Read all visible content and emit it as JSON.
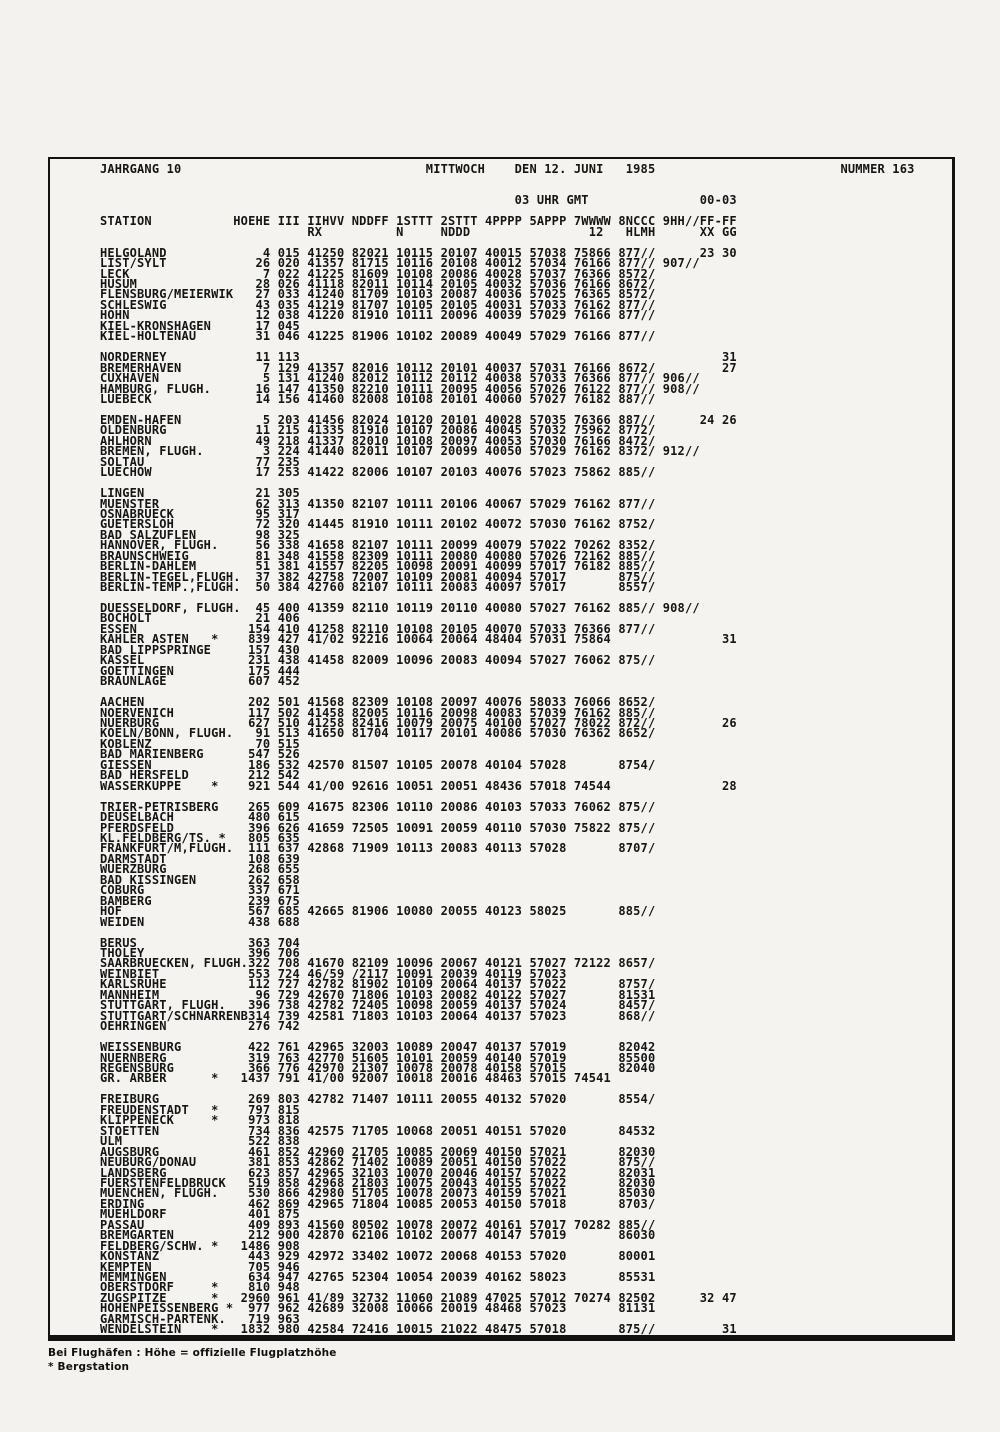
{
  "header": {
    "jahrgang": "JAHRGANG 10",
    "weekday": "MITTWOCH",
    "date": "DEN 12. JUNI",
    "year": "1985",
    "nummer": "NUMMER 163",
    "time": "03 UHR GMT",
    "period": "00-03"
  },
  "columns": {
    "line1": [
      [
        "STATION",
        0
      ],
      [
        "HOEHE",
        18
      ],
      [
        "III",
        24
      ],
      [
        "IIHVV",
        28
      ],
      [
        "NDDFF",
        34
      ],
      [
        "1STTT",
        40
      ],
      [
        "2STTT",
        46
      ],
      [
        "4PPPP",
        52
      ],
      [
        "5APPP",
        58
      ],
      [
        "7WWWW",
        64
      ],
      [
        "8NCCC",
        70
      ],
      [
        "9HH//",
        76
      ],
      [
        "FF-FF",
        81
      ]
    ],
    "line2": [
      [
        "RX",
        28
      ],
      [
        "N",
        40
      ],
      [
        "NDDD",
        46
      ],
      [
        "12",
        66
      ],
      [
        "HLMH",
        71
      ],
      [
        "XX GG",
        81
      ]
    ]
  },
  "row_fields": [
    "station",
    "marker",
    "hoehe",
    "iii",
    "iihvv",
    "nddff",
    "1sttt",
    "2sttt",
    "4pppp",
    "5appp",
    "7wwww",
    "8nccc",
    "9hh",
    "ff"
  ],
  "groups": [
    [
      [
        "HELGOLAND",
        "",
        "4",
        "015",
        "41250",
        "82021",
        "10115",
        "20107",
        "40015",
        "57038",
        "75866",
        "877//",
        "",
        "23 30"
      ],
      [
        "LIST/SYLT",
        "",
        "26",
        "020",
        "41357",
        "81715",
        "10116",
        "20108",
        "40012",
        "57034",
        "76166",
        "877//",
        "907//",
        ""
      ],
      [
        "LECK",
        "",
        "7",
        "022",
        "41225",
        "81609",
        "10108",
        "20086",
        "40028",
        "57037",
        "76366",
        "8572/",
        "",
        ""
      ],
      [
        "HUSUM",
        "",
        "28",
        "026",
        "41118",
        "82011",
        "10114",
        "20105",
        "40032",
        "57036",
        "76166",
        "8672/",
        "",
        ""
      ],
      [
        "FLENSBURG/MEIERWIK",
        "",
        "27",
        "033",
        "41240",
        "81709",
        "10103",
        "20087",
        "40036",
        "57025",
        "76365",
        "8572/",
        "",
        ""
      ],
      [
        "SCHLESWIG",
        "",
        "43",
        "035",
        "41219",
        "81707",
        "10105",
        "20105",
        "40031",
        "57033",
        "76162",
        "877//",
        "",
        ""
      ],
      [
        "HOHN",
        "",
        "12",
        "038",
        "41220",
        "81910",
        "10111",
        "20096",
        "40039",
        "57029",
        "76166",
        "877//",
        "",
        ""
      ],
      [
        "KIEL-KRONSHAGEN",
        "",
        "17",
        "045"
      ],
      [
        "KIEL-HOLTENAU",
        "",
        "31",
        "046",
        "41225",
        "81906",
        "10102",
        "20089",
        "40049",
        "57029",
        "76166",
        "877//",
        "",
        ""
      ]
    ],
    [
      [
        "NORDERNEY",
        "",
        "11",
        "113",
        "",
        "",
        "",
        "",
        "",
        "",
        "",
        "",
        "",
        "31"
      ],
      [
        "BREMERHAVEN",
        "",
        "7",
        "129",
        "41357",
        "82016",
        "10112",
        "20101",
        "40037",
        "57031",
        "76166",
        "8672/",
        "",
        "27"
      ],
      [
        "CUXHAVEN",
        "",
        "5",
        "131",
        "41240",
        "82012",
        "10112",
        "20112",
        "40038",
        "57033",
        "76366",
        "877//",
        "906//",
        ""
      ],
      [
        "HAMBURG, FLUGH.",
        "",
        "16",
        "147",
        "41350",
        "82210",
        "10111",
        "20095",
        "40056",
        "57026",
        "76122",
        "877//",
        "908//",
        ""
      ],
      [
        "LUEBECK",
        "",
        "14",
        "156",
        "41460",
        "82008",
        "10108",
        "20101",
        "40060",
        "57027",
        "76182",
        "887//",
        "",
        ""
      ]
    ],
    [
      [
        "EMDEN-HAFEN",
        "",
        "5",
        "203",
        "41456",
        "82024",
        "10120",
        "20101",
        "40028",
        "57035",
        "76366",
        "887//",
        "",
        "24 26"
      ],
      [
        "OLDENBURG",
        "",
        "11",
        "215",
        "41335",
        "81910",
        "10107",
        "20086",
        "40045",
        "57032",
        "75962",
        "8772/",
        "",
        ""
      ],
      [
        "AHLHORN",
        "",
        "49",
        "218",
        "41337",
        "82010",
        "10108",
        "20097",
        "40053",
        "57030",
        "76166",
        "8472/",
        "",
        ""
      ],
      [
        "BREMEN, FLUGH.",
        "",
        "3",
        "224",
        "41440",
        "82011",
        "10107",
        "20099",
        "40050",
        "57029",
        "76162",
        "8372/",
        "912//",
        ""
      ],
      [
        "SOLTAU",
        "",
        "77",
        "235"
      ],
      [
        "LUECHOW",
        "",
        "17",
        "253",
        "41422",
        "82006",
        "10107",
        "20103",
        "40076",
        "57023",
        "75862",
        "885//",
        "",
        ""
      ]
    ],
    [
      [
        "LINGEN",
        "",
        "21",
        "305"
      ],
      [
        "MUENSTER",
        "",
        "62",
        "313",
        "41350",
        "82107",
        "10111",
        "20106",
        "40067",
        "57029",
        "76162",
        "877//",
        "",
        ""
      ],
      [
        "OSNABRUECK",
        "",
        "95",
        "317"
      ],
      [
        "GUETERSLOH",
        "",
        "72",
        "320",
        "41445",
        "81910",
        "10111",
        "20102",
        "40072",
        "57030",
        "76162",
        "8752/",
        "",
        ""
      ],
      [
        "BAD SALZUFLEN",
        "",
        "98",
        "325"
      ],
      [
        "HANNOVER, FLUGH.",
        "",
        "56",
        "338",
        "41658",
        "82107",
        "10111",
        "20099",
        "40079",
        "57022",
        "70262",
        "8352/",
        "",
        ""
      ],
      [
        "BRAUNSCHWEIG",
        "",
        "81",
        "348",
        "41558",
        "82309",
        "10111",
        "20080",
        "40080",
        "57026",
        "72162",
        "885//",
        "",
        ""
      ],
      [
        "BERLIN-DAHLEM",
        "",
        "51",
        "381",
        "41557",
        "82205",
        "10098",
        "20091",
        "40099",
        "57017",
        "76182",
        "885//",
        "",
        ""
      ],
      [
        "BERLIN-TEGEL,FLUGH.",
        "",
        "37",
        "382",
        "42758",
        "72007",
        "10109",
        "20081",
        "40094",
        "57017",
        "",
        "875//",
        "",
        ""
      ],
      [
        "BERLIN-TEMP.,FLUGH.",
        "",
        "50",
        "384",
        "42760",
        "82107",
        "10111",
        "20083",
        "40097",
        "57017",
        "",
        "8557/",
        "",
        ""
      ]
    ],
    [
      [
        "DUESSELDORF, FLUGH.",
        "",
        "45",
        "400",
        "41359",
        "82110",
        "10119",
        "20110",
        "40080",
        "57027",
        "76162",
        "885//",
        "908//",
        ""
      ],
      [
        "BOCHOLT",
        "",
        "21",
        "406"
      ],
      [
        "ESSEN",
        "",
        "154",
        "410",
        "41258",
        "82110",
        "10108",
        "20105",
        "40070",
        "57033",
        "76366",
        "877//",
        "",
        ""
      ],
      [
        "KAHLER ASTEN",
        "*",
        "839",
        "427",
        "41/02",
        "92216",
        "10064",
        "20064",
        "48404",
        "57031",
        "75864",
        "",
        "",
        "31"
      ],
      [
        "BAD LIPPSPRINGE",
        "",
        "157",
        "430"
      ],
      [
        "KASSEL",
        "",
        "231",
        "438",
        "41458",
        "82009",
        "10096",
        "20083",
        "40094",
        "57027",
        "76062",
        "875//",
        "",
        ""
      ],
      [
        "GOETTINGEN",
        "",
        "175",
        "444"
      ],
      [
        "BRAUNLAGE",
        "",
        "607",
        "452"
      ]
    ],
    [
      [
        "AACHEN",
        "",
        "202",
        "501",
        "41568",
        "82309",
        "10108",
        "20097",
        "40076",
        "58033",
        "76066",
        "8652/",
        "",
        ""
      ],
      [
        "NOERVENICH",
        "",
        "117",
        "502",
        "41458",
        "82005",
        "10116",
        "20098",
        "40083",
        "57039",
        "76162",
        "885//",
        "",
        ""
      ],
      [
        "NUERBURG",
        "",
        "627",
        "510",
        "41258",
        "82416",
        "10079",
        "20075",
        "40100",
        "57027",
        "78022",
        "872//",
        "",
        "26"
      ],
      [
        "KOELN/BONN, FLUGH.",
        "",
        "91",
        "513",
        "41650",
        "81704",
        "10117",
        "20101",
        "40086",
        "57030",
        "76362",
        "8652/",
        "",
        ""
      ],
      [
        "KOBLENZ",
        "",
        "70",
        "515"
      ],
      [
        "BAD MARIENBERG",
        "",
        "547",
        "526"
      ],
      [
        "GIESSEN",
        "",
        "186",
        "532",
        "42570",
        "81507",
        "10105",
        "20078",
        "40104",
        "57028",
        "",
        "8754/",
        "",
        ""
      ],
      [
        "BAD HERSFELD",
        "",
        "212",
        "542"
      ],
      [
        "WASSERKUPPE",
        "*",
        "921",
        "544",
        "41/00",
        "92616",
        "10051",
        "20051",
        "48436",
        "57018",
        "74544",
        "",
        "",
        "28"
      ]
    ],
    [
      [
        "TRIER-PETRISBERG",
        "",
        "265",
        "609",
        "41675",
        "82306",
        "10110",
        "20086",
        "40103",
        "57033",
        "76062",
        "875//",
        "",
        ""
      ],
      [
        "DEUSELBACH",
        "",
        "480",
        "615"
      ],
      [
        "PFERDSFELD",
        "",
        "396",
        "626",
        "41659",
        "72505",
        "10091",
        "20059",
        "40110",
        "57030",
        "75822",
        "875//",
        "",
        ""
      ],
      [
        "KL.FELDBERG/TS.",
        "*",
        "805",
        "635"
      ],
      [
        "FRANKFURT/M,FLUGH.",
        "",
        "111",
        "637",
        "42868",
        "71909",
        "10113",
        "20083",
        "40113",
        "57028",
        "",
        "8707/",
        "",
        ""
      ],
      [
        "DARMSTADT",
        "",
        "108",
        "639"
      ],
      [
        "WUERZBURG",
        "",
        "268",
        "655"
      ],
      [
        "BAD KISSINGEN",
        "",
        "262",
        "658"
      ],
      [
        "COBURG",
        "",
        "337",
        "671"
      ],
      [
        "BAMBERG",
        "",
        "239",
        "675"
      ],
      [
        "HOF",
        "",
        "567",
        "685",
        "42665",
        "81906",
        "10080",
        "20055",
        "40123",
        "58025",
        "",
        "885//",
        "",
        ""
      ],
      [
        "WEIDEN",
        "",
        "438",
        "688"
      ]
    ],
    [
      [
        "BERUS",
        "",
        "363",
        "704"
      ],
      [
        "THOLEY",
        "",
        "396",
        "706"
      ],
      [
        "SAARBRUECKEN, FLUGH.",
        "",
        "322",
        "708",
        "41670",
        "82109",
        "10096",
        "20067",
        "40121",
        "57027",
        "72122",
        "8657/",
        "",
        ""
      ],
      [
        "WEINBIET",
        "",
        "553",
        "724",
        "46/59",
        "/2117",
        "10091",
        "20039",
        "40119",
        "57023",
        "",
        "",
        "",
        ""
      ],
      [
        "KARLSRUHE",
        "",
        "112",
        "727",
        "42782",
        "81902",
        "10109",
        "20064",
        "40137",
        "57022",
        "",
        "8757/",
        "",
        ""
      ],
      [
        "MANNHEIM",
        "",
        "96",
        "729",
        "42670",
        "71806",
        "10103",
        "20082",
        "40122",
        "57027",
        "",
        "81531",
        "",
        ""
      ],
      [
        "STUTTGART, FLUGH.",
        "",
        "396",
        "738",
        "42782",
        "72405",
        "10098",
        "20059",
        "40137",
        "57024",
        "",
        "8457/",
        "",
        ""
      ],
      [
        "STUTTGART/SCHNARRENB",
        "",
        "314",
        "739",
        "42581",
        "71803",
        "10103",
        "20064",
        "40137",
        "57023",
        "",
        "868//",
        "",
        ""
      ],
      [
        "OEHRINGEN",
        "",
        "276",
        "742"
      ]
    ],
    [
      [
        "WEISSENBURG",
        "",
        "422",
        "761",
        "42965",
        "32003",
        "10089",
        "20047",
        "40137",
        "57019",
        "",
        "82042",
        "",
        ""
      ],
      [
        "NUERNBERG",
        "",
        "319",
        "763",
        "42770",
        "51605",
        "10101",
        "20059",
        "40140",
        "57019",
        "",
        "85500",
        "",
        ""
      ],
      [
        "REGENSBURG",
        "",
        "366",
        "776",
        "42970",
        "21307",
        "10078",
        "20078",
        "40158",
        "57015",
        "",
        "82040",
        "",
        ""
      ],
      [
        "GR. ARBER",
        "*",
        "1437",
        "791",
        "41/00",
        "92007",
        "10018",
        "20016",
        "48463",
        "57015",
        "74541",
        "",
        "",
        ""
      ]
    ],
    [
      [
        "FREIBURG",
        "",
        "269",
        "803",
        "42782",
        "71407",
        "10111",
        "20055",
        "40132",
        "57020",
        "",
        "8554/",
        "",
        ""
      ],
      [
        "FREUDENSTADT",
        "*",
        "797",
        "815"
      ],
      [
        "KLIPPENECK",
        "*",
        "973",
        "818"
      ],
      [
        "STOETTEN",
        "",
        "734",
        "836",
        "42575",
        "71705",
        "10068",
        "20051",
        "40151",
        "57020",
        "",
        "84532",
        "",
        ""
      ],
      [
        "ULM",
        "",
        "522",
        "838"
      ],
      [
        "AUGSBURG",
        "",
        "461",
        "852",
        "42960",
        "21705",
        "10085",
        "20069",
        "40150",
        "57021",
        "",
        "82030",
        "",
        ""
      ],
      [
        "NEUBURG/DONAU",
        "",
        "381",
        "853",
        "42862",
        "71402",
        "10089",
        "20051",
        "40150",
        "57022",
        "",
        "875//",
        "",
        ""
      ],
      [
        "LANDSBERG",
        "",
        "623",
        "857",
        "42965",
        "32103",
        "10070",
        "20046",
        "40157",
        "57022",
        "",
        "82031",
        "",
        ""
      ],
      [
        "FUERSTENFELDBRUCK",
        "",
        "519",
        "858",
        "42968",
        "21803",
        "10075",
        "20043",
        "40155",
        "57022",
        "",
        "82030",
        "",
        ""
      ],
      [
        "MUENCHEN, FLUGH.",
        "",
        "530",
        "866",
        "42980",
        "51705",
        "10078",
        "20073",
        "40159",
        "57021",
        "",
        "85030",
        "",
        ""
      ],
      [
        "ERDING",
        "",
        "462",
        "869",
        "42965",
        "71804",
        "10085",
        "20053",
        "40150",
        "57018",
        "",
        "8703/",
        "",
        ""
      ],
      [
        "MUEHLDORF",
        "",
        "401",
        "875"
      ],
      [
        "PASSAU",
        "",
        "409",
        "893",
        "41560",
        "80502",
        "10078",
        "20072",
        "40161",
        "57017",
        "70282",
        "885//",
        "",
        ""
      ],
      [
        "BREMGARTEN",
        "",
        "212",
        "900",
        "42870",
        "62106",
        "10102",
        "20077",
        "40147",
        "57019",
        "",
        "86030",
        "",
        ""
      ],
      [
        "FELDBERG/SCHW.",
        "*",
        "1486",
        "908"
      ],
      [
        "KONSTANZ",
        "",
        "443",
        "929",
        "42972",
        "33402",
        "10072",
        "20068",
        "40153",
        "57020",
        "",
        "80001",
        "",
        ""
      ],
      [
        "KEMPTEN",
        "",
        "705",
        "946"
      ],
      [
        "MEMMINGEN",
        "",
        "634",
        "947",
        "42765",
        "52304",
        "10054",
        "20039",
        "40162",
        "58023",
        "",
        "85531",
        "",
        ""
      ],
      [
        "OBERSTDORF",
        "*",
        "810",
        "948"
      ],
      [
        "ZUGSPITZE",
        "*",
        "2960",
        "961",
        "41/89",
        "32732",
        "11060",
        "21089",
        "47025",
        "57012",
        "70274",
        "82502",
        "",
        "32 47"
      ],
      [
        "HOHENPEISSENBERG",
        "*",
        "977",
        "962",
        "42689",
        "32008",
        "10066",
        "20019",
        "48468",
        "57023",
        "",
        "81131",
        "",
        ""
      ],
      [
        "GARMISCH-PARTENK.",
        "",
        "719",
        "963"
      ],
      [
        "WENDELSTEIN",
        "*",
        "1832",
        "980",
        "42584",
        "72416",
        "10015",
        "21022",
        "48475",
        "57018",
        "",
        "875//",
        "",
        "31"
      ]
    ]
  ],
  "footnotes": {
    "line1": "Bei Flughäfen : Höhe = offizielle Flugplatzhöhe",
    "line2": "* Bergstation"
  }
}
